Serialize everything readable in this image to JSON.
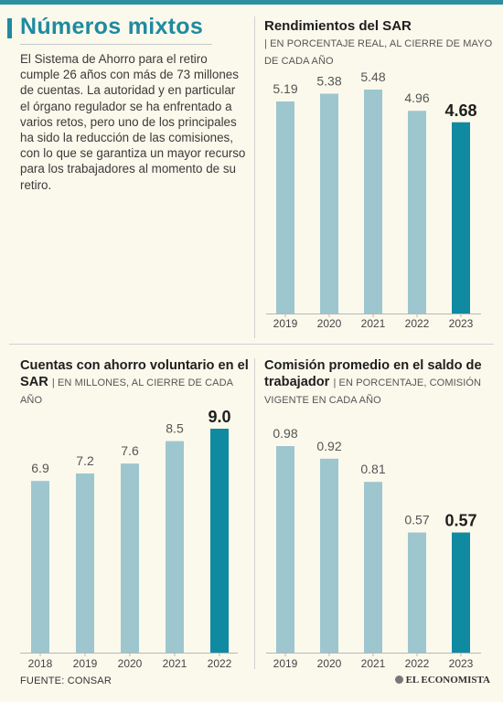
{
  "header": {
    "title": "Números mixtos",
    "intro": "El Sistema de Ahorro para el retiro cumple 26 años con más de 73 millones de cuentas. La autoridad y en particular el órgano regulador se ha enfrentado a varios retos, pero uno de los principales ha sido la reducción de las comisiones, con lo que se garantiza un mayor recurso para los trabajadores al momento de su retiro."
  },
  "panels": {
    "rendimientos": {
      "title": "Rendimientos del SAR",
      "subtitle": "| EN PORCENTAJE REAL, AL CIERRE DE MAYO DE CADA AÑO"
    },
    "cuentas": {
      "title": "Cuentas con ahorro voluntario en el SAR",
      "subtitle": "| EN MILLONES, AL CIERRE DE CADA AÑO"
    },
    "comision": {
      "title": "Comisión promedio en el saldo de trabajador",
      "subtitle": "| EN PORCENTAJE, COMISIÓN VIGENTE EN CADA AÑO"
    }
  },
  "colors": {
    "bar": "#9ec6cf",
    "highlight": "#0f8aa0",
    "accent": "#1f8aa0"
  },
  "footer": {
    "source": "FUENTE: CONSAR",
    "logo": "EL ECONOMISTA"
  },
  "chart_data": [
    {
      "type": "bar",
      "title": "Rendimientos del SAR",
      "subtitle": "EN PORCENTAJE REAL, AL CIERRE DE MAYO DE CADA AÑO",
      "categories": [
        "2019",
        "2020",
        "2021",
        "2022",
        "2023"
      ],
      "values": [
        5.19,
        5.38,
        5.48,
        4.96,
        4.68
      ],
      "labels": [
        "5.19",
        "5.38",
        "5.48",
        "4.96",
        "4.68"
      ],
      "highlight_index": 4,
      "grid": false
    },
    {
      "type": "bar",
      "title": "Cuentas con ahorro voluntario en el SAR",
      "subtitle": "EN MILLONES, AL CIERRE DE CADA AÑO",
      "categories": [
        "2018",
        "2019",
        "2020",
        "2021",
        "2022"
      ],
      "values": [
        6.9,
        7.2,
        7.6,
        8.5,
        9.0
      ],
      "labels": [
        "6.9",
        "7.2",
        "7.6",
        "8.5",
        "9.0"
      ],
      "highlight_index": 4,
      "grid": false
    },
    {
      "type": "bar",
      "title": "Comisión promedio en el saldo de trabajador",
      "subtitle": "EN PORCENTAJE, COMISIÓN VIGENTE EN CADA AÑO",
      "categories": [
        "2019",
        "2020",
        "2021",
        "2022",
        "2023"
      ],
      "values": [
        0.98,
        0.92,
        0.81,
        0.57,
        0.57
      ],
      "labels": [
        "0.98",
        "0.92",
        "0.81",
        "0.57",
        "0.57"
      ],
      "highlight_index": 4,
      "grid": false
    }
  ]
}
